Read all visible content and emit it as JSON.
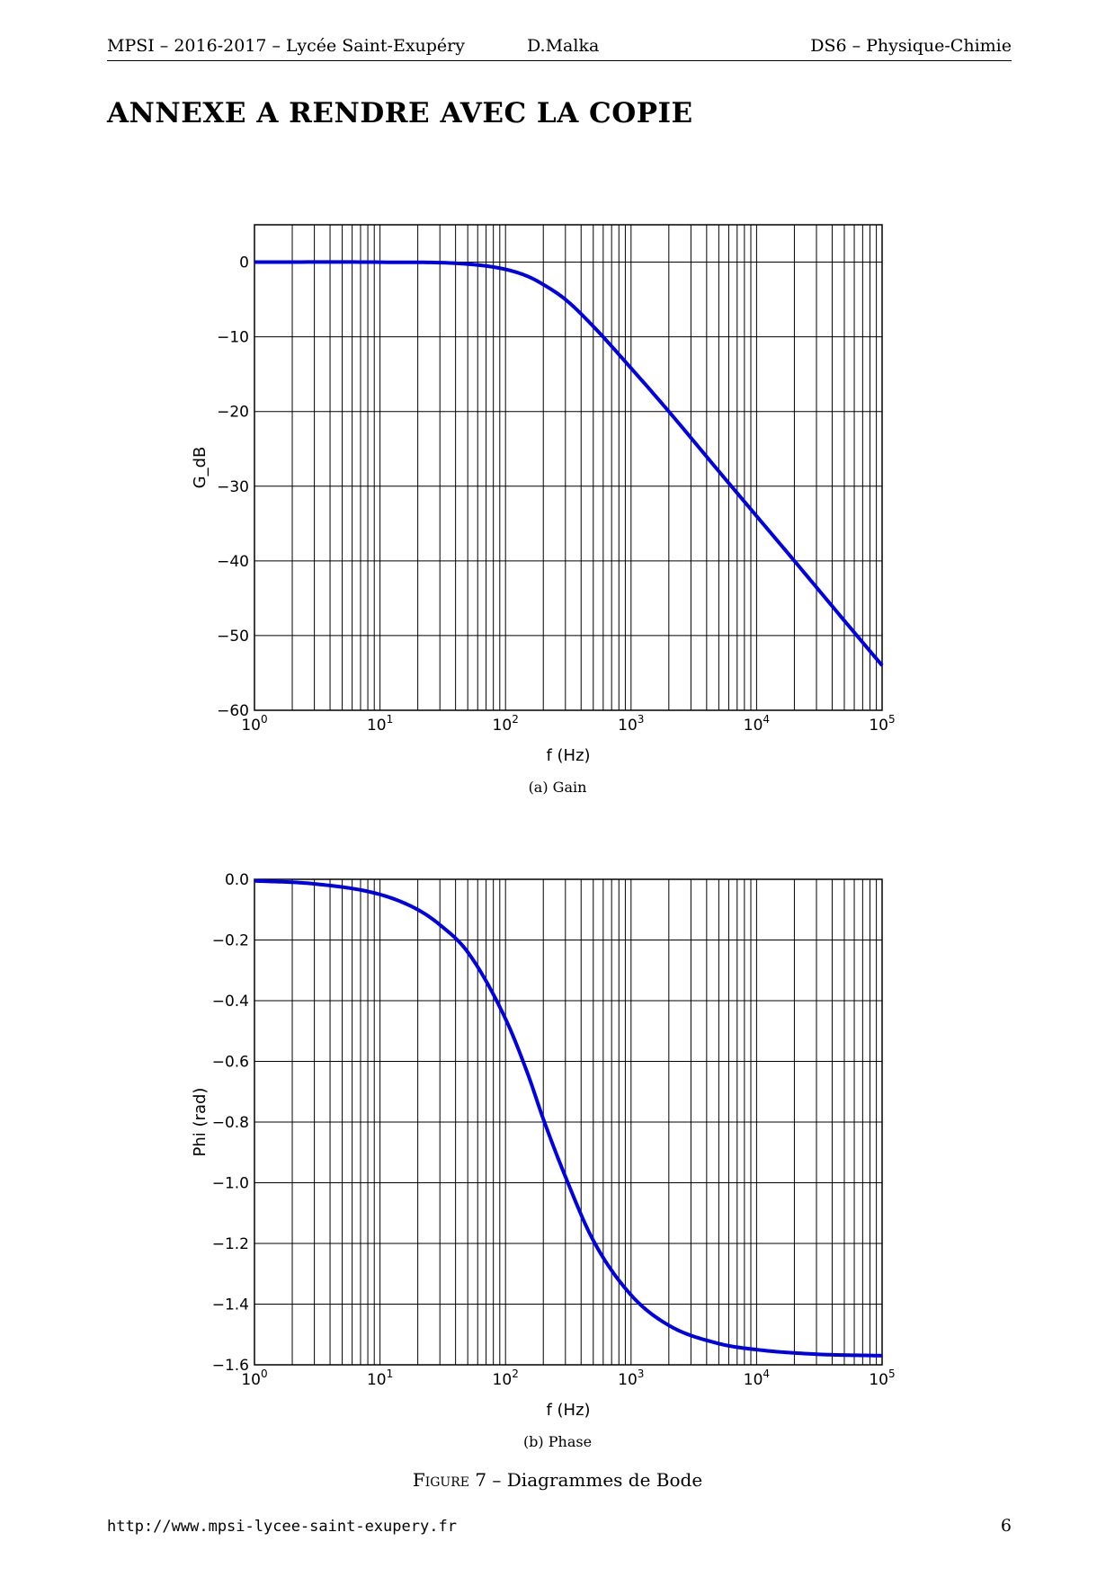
{
  "header": {
    "left": "MPSI – 2016-2017 – Lycée Saint-Exupéry",
    "center": "D.Malka",
    "right": "DS6 – Physique-Chimie"
  },
  "title": "ANNEXE A RENDRE AVEC LA COPIE",
  "captions": {
    "gain": "(a) Gain",
    "phase": "(b) Phase",
    "figure_prefix": "Figure 7",
    "figure_text": " – Diagrammes de Bode"
  },
  "footer": {
    "url": "http://www.mpsi-lycee-saint-exupery.fr",
    "page": "6"
  },
  "chart_data": [
    {
      "type": "line",
      "name": "gain",
      "xlabel": "f (Hz)",
      "ylabel": "G_dB",
      "xscale": "log",
      "xlim": [
        1,
        100000
      ],
      "ylim": [
        -60,
        5
      ],
      "grid": "major+minor",
      "x_tick_labels": [
        "10^0",
        "10^1",
        "10^2",
        "10^3",
        "10^4",
        "10^5"
      ],
      "y_ticks": [
        0,
        -10,
        -20,
        -30,
        -40,
        -50,
        -60
      ],
      "y_tick_labels": [
        "0",
        "−10",
        "−20",
        "−30",
        "−40",
        "−50",
        "−60"
      ],
      "series": [
        {
          "color": "#0000e6",
          "x": [
            1,
            10,
            50,
            100,
            150,
            200,
            300,
            500,
            1000,
            2000,
            5000,
            10000,
            20000,
            50000,
            100000
          ],
          "y": [
            0,
            -0.01,
            -0.26,
            -0.97,
            -1.9,
            -3.0,
            -5.0,
            -8.6,
            -14.2,
            -20.0,
            -28.0,
            -34.0,
            -40.0,
            -48.0,
            -54.0
          ]
        }
      ],
      "colors": {
        "line": "#0000e6",
        "grid": "#000000"
      }
    },
    {
      "type": "line",
      "name": "phase",
      "xlabel": "f (Hz)",
      "ylabel": "Phi (rad)",
      "xscale": "log",
      "xlim": [
        1,
        100000
      ],
      "ylim": [
        -1.6,
        0.0
      ],
      "grid": "major+minor",
      "x_tick_labels": [
        "10^0",
        "10^1",
        "10^2",
        "10^3",
        "10^4",
        "10^5"
      ],
      "y_ticks": [
        0.0,
        -0.2,
        -0.4,
        -0.6,
        -0.8,
        -1.0,
        -1.2,
        -1.4,
        -1.6
      ],
      "y_tick_labels": [
        "0.0",
        "−0.2",
        "−0.4",
        "−0.6",
        "−0.8",
        "−1.0",
        "−1.2",
        "−1.4",
        "−1.6"
      ],
      "series": [
        {
          "color": "#0000e6",
          "x": [
            1,
            3,
            10,
            20,
            30,
            50,
            100,
            150,
            200,
            300,
            500,
            1000,
            2000,
            5000,
            10000,
            30000,
            100000
          ],
          "y": [
            -0.005,
            -0.015,
            -0.05,
            -0.1,
            -0.15,
            -0.24,
            -0.46,
            -0.64,
            -0.79,
            -0.98,
            -1.19,
            -1.37,
            -1.47,
            -1.53,
            -1.55,
            -1.565,
            -1.57
          ]
        }
      ],
      "colors": {
        "line": "#0000e6",
        "grid": "#000000"
      }
    }
  ]
}
